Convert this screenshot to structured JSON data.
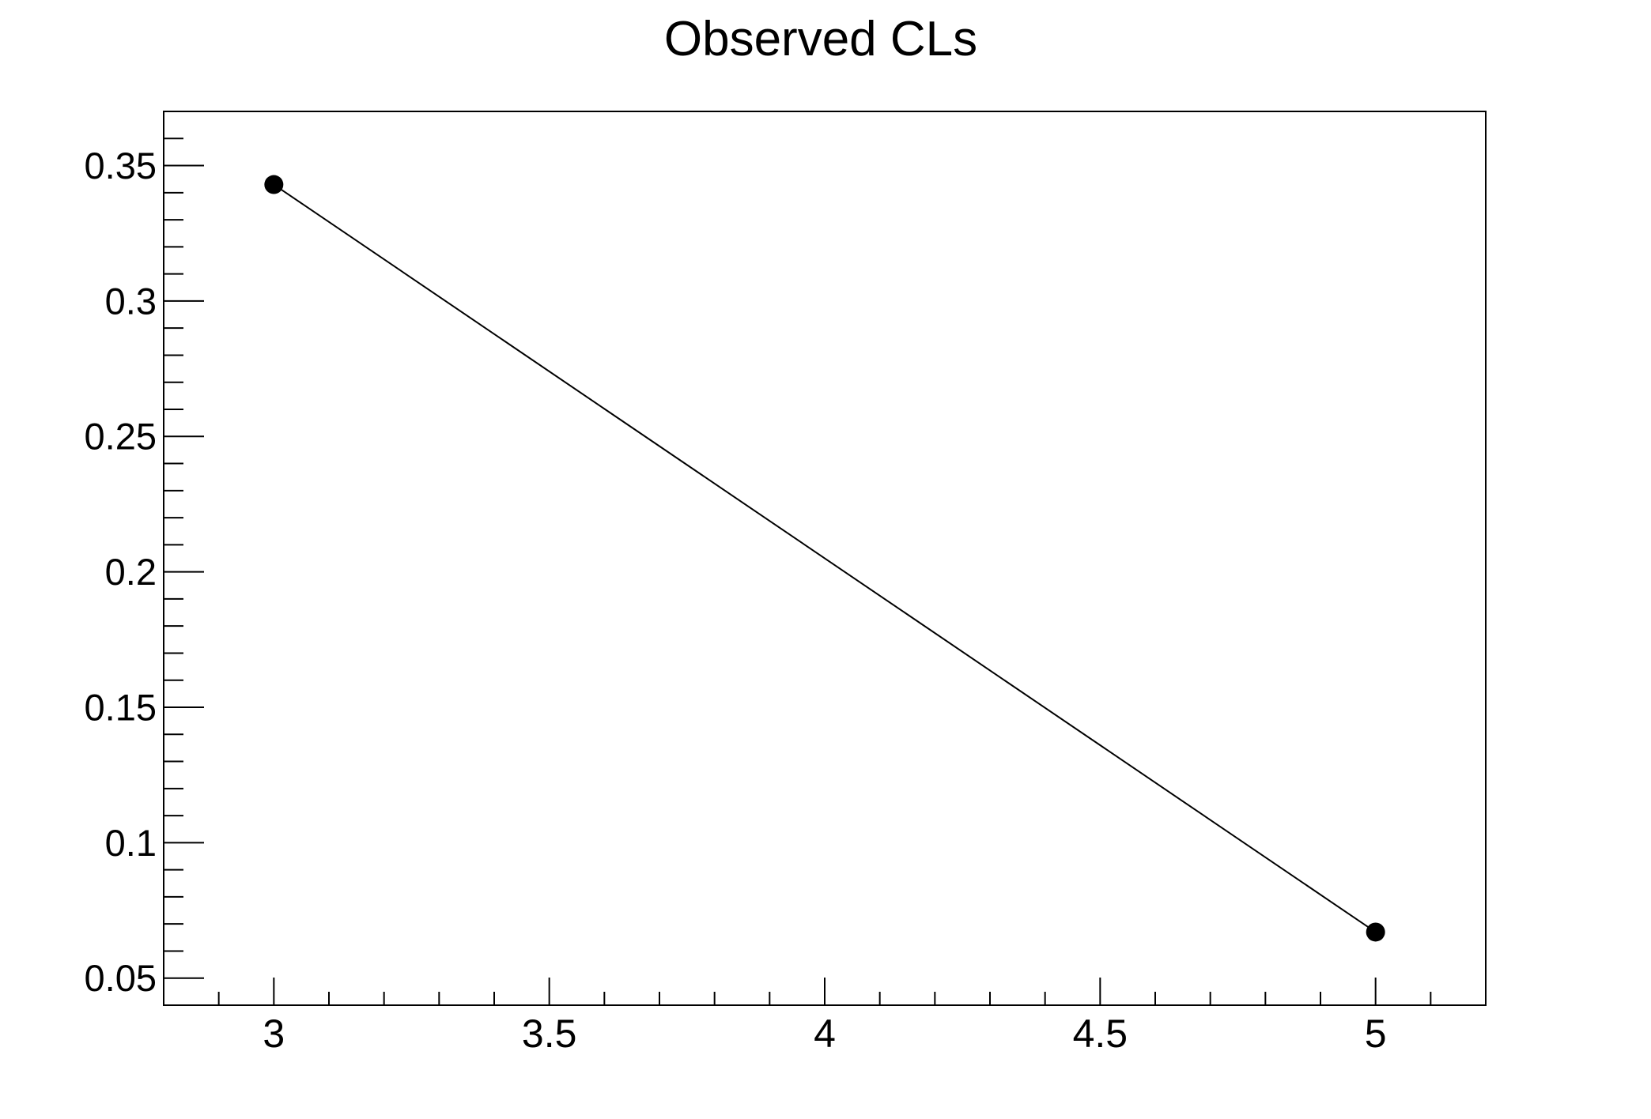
{
  "title": "Observed CLs",
  "chart_data": {
    "type": "line",
    "title": "Observed CLs",
    "series": [
      {
        "name": "Observed CLs",
        "x": [
          3,
          5
        ],
        "y": [
          0.343,
          0.067
        ]
      }
    ],
    "xlabel": "",
    "ylabel": "",
    "xlim": [
      2.8,
      5.2
    ],
    "ylim": [
      0.04,
      0.37
    ],
    "x_major_ticks": [
      3,
      3.5,
      4,
      4.5,
      5
    ],
    "x_tick_labels": [
      "3",
      "3.5",
      "4",
      "4.5",
      "5"
    ],
    "x_minor_step": 0.1,
    "y_major_ticks": [
      0.05,
      0.1,
      0.15,
      0.2,
      0.25,
      0.3,
      0.35
    ],
    "y_tick_labels": [
      "0.05",
      "0.1",
      "0.15",
      "0.2",
      "0.25",
      "0.3",
      "0.35"
    ],
    "y_minor_step": 0.01,
    "grid": false,
    "legend": false,
    "marker": "filled-circle",
    "line_color": "#000000",
    "marker_color": "#000000",
    "axis_color": "#000000",
    "background": "#ffffff",
    "tick_direction": "in",
    "ticks_on": [
      "left",
      "bottom"
    ]
  }
}
